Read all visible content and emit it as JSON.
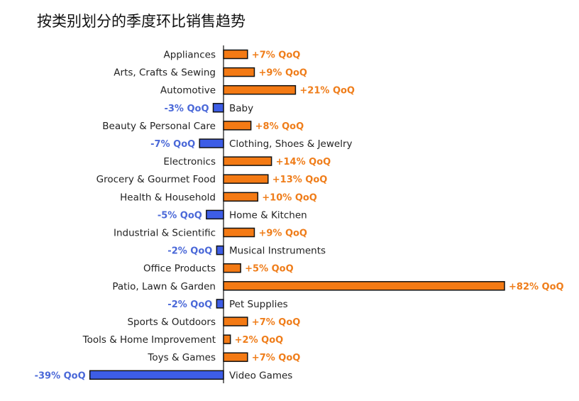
{
  "title": "按类别划分的季度环比销售趋势",
  "colors": {
    "positive": "#f47a14",
    "negative": "#3d5de6",
    "outline": "#111111",
    "axis": "#111111"
  },
  "chart_data": {
    "type": "bar",
    "orientation": "horizontal",
    "title": "按类别划分的季度环比销售趋势",
    "categories": [
      "Appliances",
      "Arts, Crafts & Sewing",
      "Automotive",
      "Baby",
      "Beauty & Personal Care",
      "Clothing, Shoes & Jewelry",
      "Electronics",
      "Grocery & Gourmet Food",
      "Health & Household",
      "Home & Kitchen",
      "Industrial & Scientific",
      "Musical Instruments",
      "Office Products",
      "Patio, Lawn & Garden",
      "Pet Supplies",
      "Sports & Outdoors",
      "Tools & Home Improvement",
      "Toys & Games",
      "Video Games"
    ],
    "values": [
      7,
      9,
      21,
      -3,
      8,
      -7,
      14,
      13,
      10,
      -5,
      9,
      -2,
      5,
      82,
      -2,
      7,
      2,
      7,
      -39
    ],
    "labels": [
      "+7% QoQ",
      "+9% QoQ",
      "+21% QoQ",
      "-3% QoQ",
      "+8% QoQ",
      "-7% QoQ",
      "+14% QoQ",
      "+13% QoQ",
      "+10% QoQ",
      "-5% QoQ",
      "+9% QoQ",
      "-2% QoQ",
      "+5% QoQ",
      "+82% QoQ",
      "-2% QoQ",
      "+7% QoQ",
      "+2% QoQ",
      "+7% QoQ",
      "-39% QoQ"
    ],
    "unit": "% QoQ",
    "grid": false
  }
}
